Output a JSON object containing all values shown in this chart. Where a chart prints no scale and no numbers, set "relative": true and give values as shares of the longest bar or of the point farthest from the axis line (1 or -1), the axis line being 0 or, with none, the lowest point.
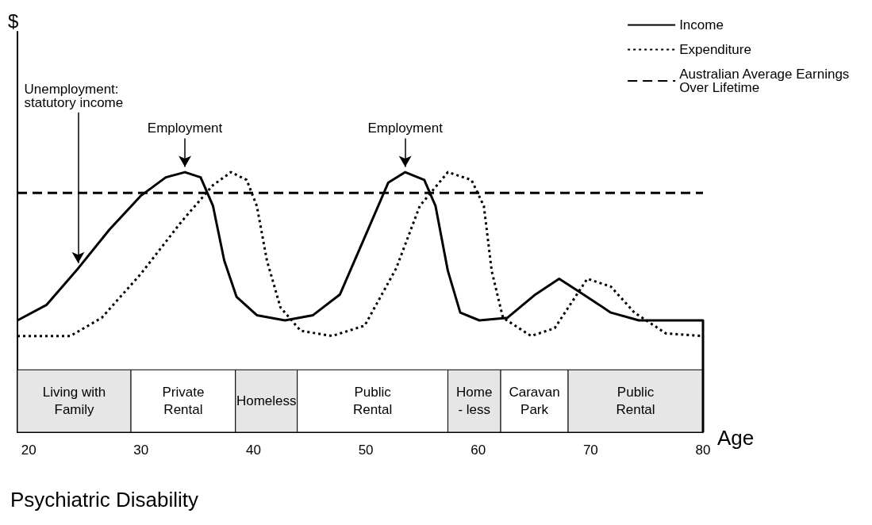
{
  "chart_data": {
    "type": "line",
    "title": "Psychiatric Disability",
    "xlabel": "Age",
    "relative": true,
    "xlim": [
      19,
      80
    ],
    "xticks": [
      20,
      30,
      40,
      50,
      60,
      70,
      80
    ],
    "grid": false,
    "legend": "top right",
    "marker": "none",
    "series": [
      {
        "name": "Income",
        "color": "#000000",
        "line_style": "solid",
        "x": [
          19,
          21.6,
          24.4,
          27.2,
          30,
          32.2,
          33.9,
          35.3,
          36.4,
          37.4,
          38.5,
          40.3,
          42.8,
          45.3,
          47.7,
          49.9,
          52,
          53.5,
          55.2,
          56.2,
          57.3,
          58.4,
          60.1,
          62.6,
          65.1,
          67.2,
          69,
          71.8,
          74.3,
          80,
          80
        ],
        "values": [
          0.43,
          0.49,
          0.63,
          0.78,
          0.91,
          0.98,
          1.0,
          0.98,
          0.87,
          0.66,
          0.52,
          0.45,
          0.43,
          0.45,
          0.53,
          0.75,
          0.96,
          1.0,
          0.97,
          0.87,
          0.62,
          0.46,
          0.43,
          0.44,
          0.53,
          0.59,
          0.54,
          0.46,
          0.43,
          0.43,
          0
        ]
      },
      {
        "name": "Expenditure",
        "color": "#000000",
        "line_style": "dotted",
        "x": [
          19,
          23.7,
          26.5,
          30,
          33.6,
          36.4,
          38,
          39.4,
          40.3,
          41.2,
          42.4,
          44.2,
          47,
          49.9,
          52.7,
          54.8,
          57.3,
          59.4,
          60.5,
          61.2,
          62.2,
          64.7,
          66.8,
          69.7,
          71.8,
          73.9,
          76.7,
          80
        ],
        "values": [
          0.37,
          0.37,
          0.44,
          0.61,
          0.81,
          0.95,
          1.0,
          0.97,
          0.87,
          0.66,
          0.48,
          0.39,
          0.37,
          0.41,
          0.63,
          0.87,
          1.0,
          0.97,
          0.87,
          0.62,
          0.44,
          0.37,
          0.4,
          0.59,
          0.56,
          0.46,
          0.38,
          0.37
        ]
      },
      {
        "name": "Australian Average Earnings Over Lifetime",
        "color": "#000000",
        "line_style": "dashed",
        "x": [
          19,
          80
        ],
        "values": [
          0.92,
          0.92
        ]
      }
    ],
    "bands": [
      {
        "axis": "x",
        "from": 19,
        "to": 29.1,
        "label": "Living with\nFamily",
        "color": "#e6e6e6"
      },
      {
        "axis": "x",
        "from": 29.1,
        "to": 38.4,
        "label": "Private\nRental",
        "color": "#ffffff"
      },
      {
        "axis": "x",
        "from": 38.4,
        "to": 43.9,
        "label": "Homeless",
        "color": "#e6e6e6"
      },
      {
        "axis": "x",
        "from": 43.9,
        "to": 57.3,
        "label": "Public\nRental",
        "color": "#ffffff"
      },
      {
        "axis": "x",
        "from": 57.3,
        "to": 62,
        "label": "Home\n- less",
        "color": "#e6e6e6"
      },
      {
        "axis": "x",
        "from": 62,
        "to": 68,
        "label": "Caravan\nPark",
        "color": "#ffffff"
      },
      {
        "axis": "x",
        "from": 68,
        "to": 80,
        "label": "Public\nRental",
        "color": "#e6e6e6"
      }
    ],
    "annotations": [
      "$",
      {
        "text": "Unemployment:\nstatutory income",
        "x": 24.4,
        "y": 0.63
      },
      {
        "text": "Employment",
        "x": 33.9,
        "y": 1.0
      },
      {
        "text": "Employment",
        "x": 53.5,
        "y": 1.0
      }
    ]
  }
}
